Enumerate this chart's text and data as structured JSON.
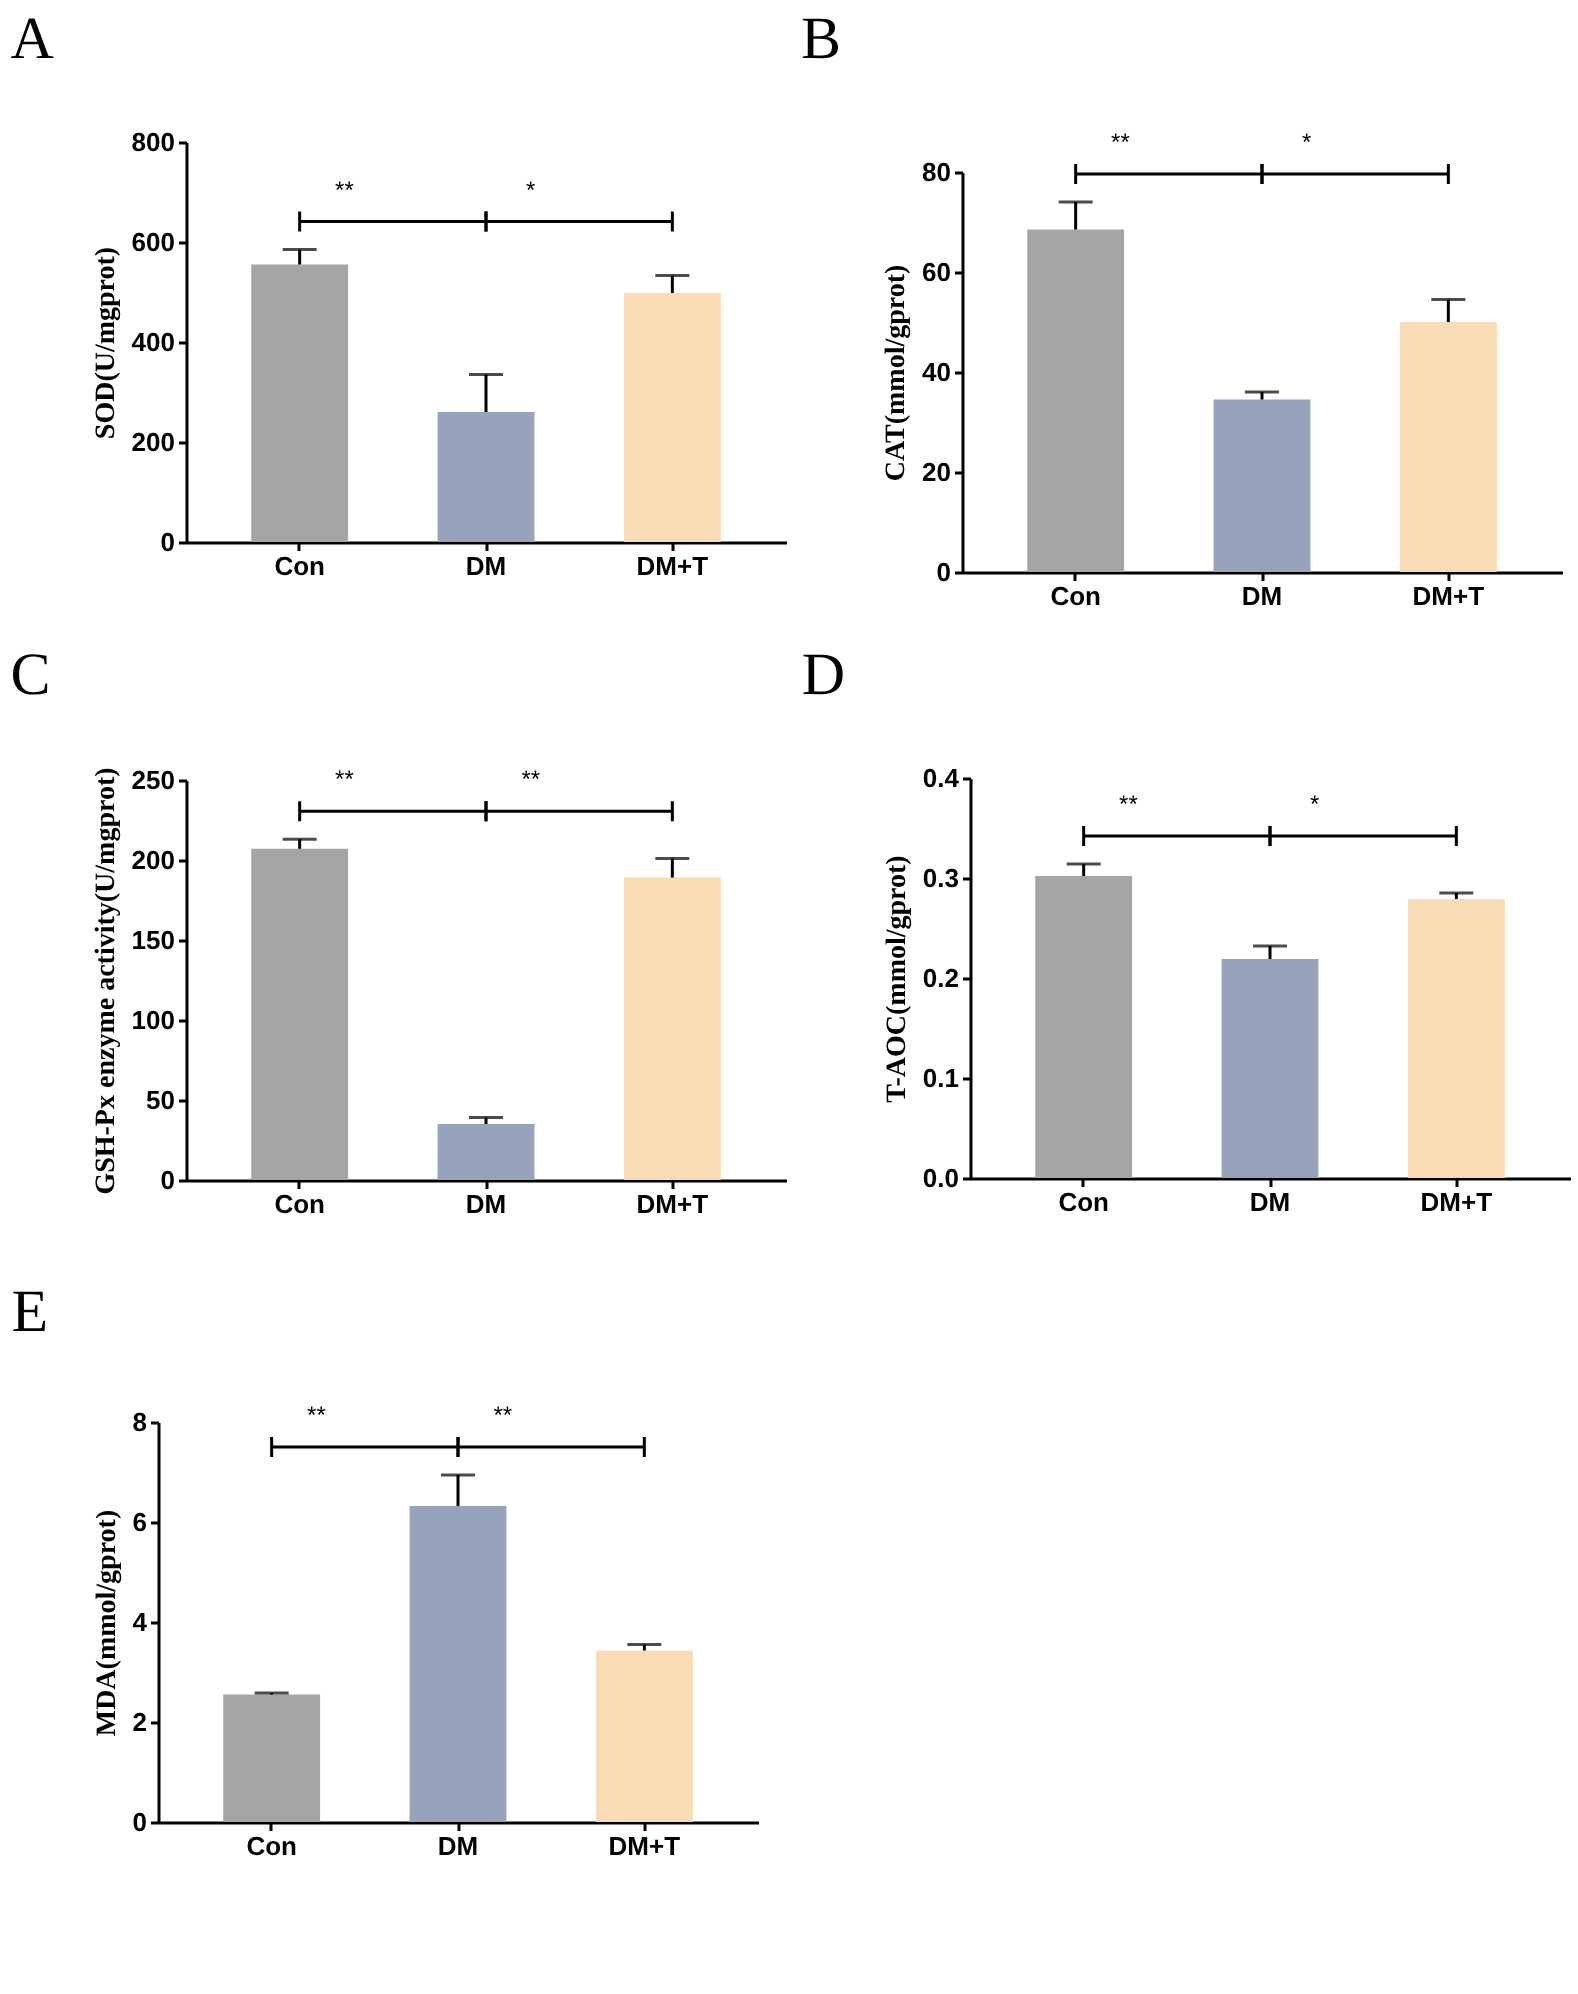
{
  "chart_data": [
    {
      "type": "bar",
      "title": "A",
      "ylabel": "SOD(U/mgprot)",
      "categories": [
        "Con",
        "DM",
        "DM+T"
      ],
      "values": [
        555,
        260,
        498
      ],
      "errors": [
        30,
        75,
        35
      ],
      "colors": [
        "#a5a5a5",
        "#97a3ba",
        "#f9dcb6"
      ],
      "ylim": [
        0,
        800
      ],
      "yticks": [
        0,
        200,
        400,
        600,
        800
      ],
      "annotations": [
        "**",
        "*"
      ]
    },
    {
      "type": "bar",
      "title": "B",
      "ylabel": "CAT(mmol/gprot)",
      "categories": [
        "Con",
        "DM",
        "DM+T"
      ],
      "values": [
        68.5,
        34.5,
        50
      ],
      "errors": [
        5.5,
        1.5,
        4.5
      ],
      "colors": [
        "#a5a5a5",
        "#97a3ba",
        "#f9dcb6"
      ],
      "ylim": [
        0,
        80
      ],
      "yticks": [
        0,
        20,
        40,
        60,
        80
      ],
      "annotations": [
        "**",
        "*"
      ]
    },
    {
      "type": "bar",
      "title": "C",
      "ylabel": "GSH-Px enzyme activity(U/mgprot)",
      "categories": [
        "Con",
        "DM",
        "DM+T"
      ],
      "values": [
        207,
        35,
        189
      ],
      "errors": [
        6,
        4,
        12
      ],
      "colors": [
        "#a5a5a5",
        "#97a3ba",
        "#f9dcb6"
      ],
      "ylim": [
        0,
        250
      ],
      "yticks": [
        0,
        50,
        100,
        150,
        200,
        250
      ],
      "annotations": [
        "**",
        "**"
      ]
    },
    {
      "type": "bar",
      "title": "D",
      "ylabel": "T-AOC(mmol/gprot)",
      "categories": [
        "Con",
        "DM",
        "DM+T"
      ],
      "values": [
        0.302,
        0.219,
        0.279
      ],
      "errors": [
        0.012,
        0.013,
        0.006
      ],
      "colors": [
        "#a5a5a5",
        "#97a3ba",
        "#f9dcb6"
      ],
      "ylim": [
        0,
        0.4
      ],
      "yticks": [
        {
          "value": 0,
          "label": "0.0"
        },
        0.1,
        0.2,
        0.3,
        0.4
      ],
      "annotations": [
        "**",
        "*"
      ]
    },
    {
      "type": "bar",
      "title": "E",
      "ylabel": "MDA(mmol/gprot)",
      "categories": [
        "Con",
        "DM",
        "DM+T"
      ],
      "values": [
        2.55,
        6.32,
        3.43
      ],
      "errors": [
        0.03,
        0.62,
        0.12
      ],
      "colors": [
        "#a5a5a5",
        "#97a3ba",
        "#f9dcb6"
      ],
      "ylim": [
        0,
        8
      ],
      "yticks": [
        0,
        2,
        4,
        6,
        8
      ],
      "annotations": [
        "**",
        "**"
      ]
    }
  ]
}
